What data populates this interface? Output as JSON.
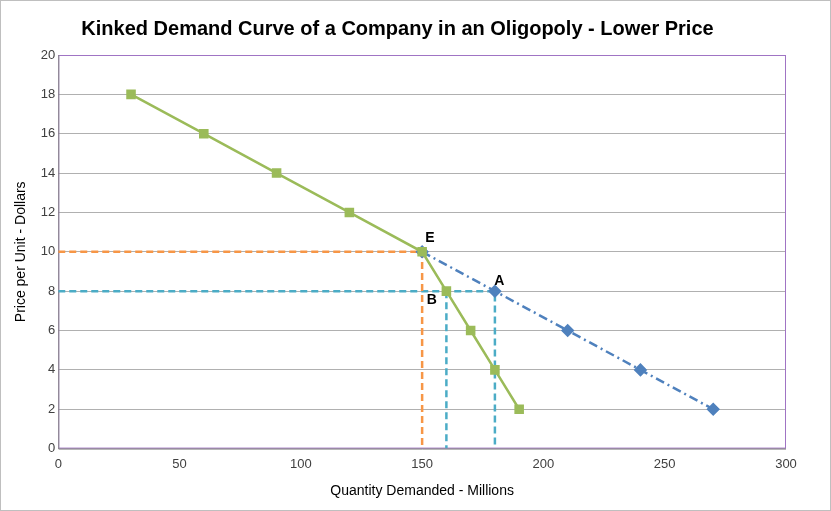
{
  "chart_data": {
    "type": "line",
    "title": "Kinked Demand Curve of a Company in an Oligopoly - Lower Price",
    "x_label": "Quantity Demanded - Millions",
    "y_label": "Price per Unit - Dollars",
    "xlim": [
      0,
      300
    ],
    "xticks": [
      0,
      50,
      100,
      150,
      200,
      250,
      300
    ],
    "ylim": [
      0,
      20
    ],
    "yticks": [
      0,
      2,
      4,
      6,
      8,
      10,
      12,
      14,
      16,
      18,
      20
    ],
    "grid": "y",
    "series": [
      {
        "color": "#9bbb59",
        "line_style": "solid",
        "marker": "square",
        "x": [
          30,
          60,
          90,
          120,
          150,
          160,
          170,
          180,
          190
        ],
        "values": [
          18,
          16,
          14,
          12,
          10,
          8,
          6,
          4,
          2
        ]
      },
      {
        "color": "#4f81bd",
        "line_style": "dashdot",
        "marker": "diamond",
        "x": [
          150,
          180,
          210,
          240,
          270
        ],
        "values": [
          10,
          8,
          6,
          4,
          2
        ]
      },
      {
        "color": "#f79646",
        "line_style": "dashed",
        "marker": "none",
        "x": [
          0,
          150,
          150
        ],
        "values": [
          10,
          10,
          0
        ]
      },
      {
        "color": "#4bacc6",
        "line_style": "dashed",
        "marker": "none",
        "x": [
          0,
          180,
          180
        ],
        "values": [
          8,
          8,
          0
        ]
      },
      {
        "color": "#4bacc6",
        "line_style": "dashed",
        "marker": "none",
        "x": [
          160,
          160
        ],
        "values": [
          8,
          0
        ]
      }
    ],
    "annotations": [
      {
        "text": "E",
        "x": 153.2,
        "y": 10.67
      },
      {
        "text": "A",
        "x": 181.8,
        "y": 8.53
      },
      {
        "text": "B",
        "x": 154,
        "y": 7.52
      }
    ]
  }
}
